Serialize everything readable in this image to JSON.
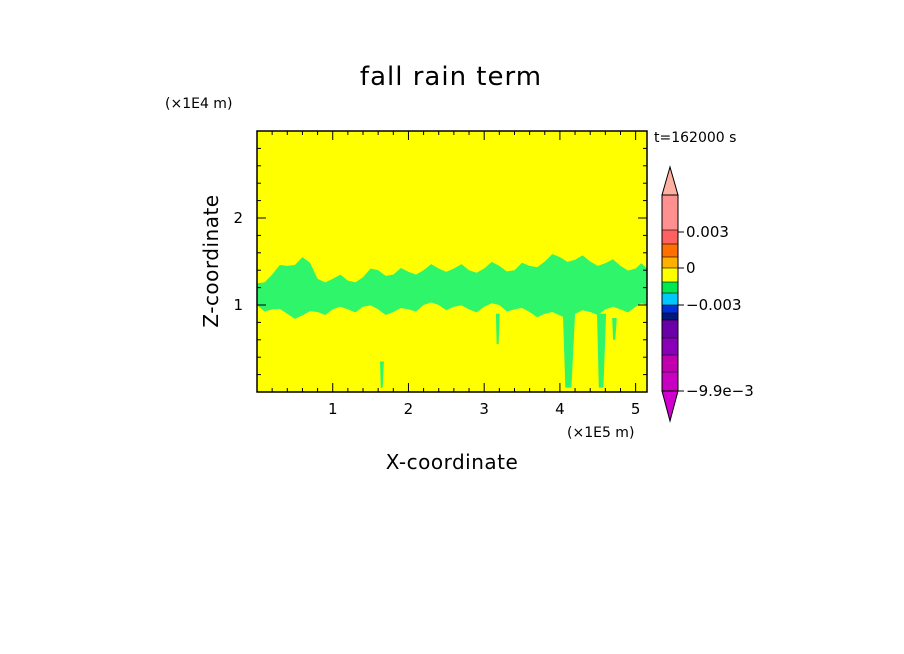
{
  "chart_data": {
    "type": "heatmap",
    "title": "fall rain term",
    "xlabel": "X-coordinate",
    "ylabel": "Z-coordinate",
    "x_unit": "(×1E5 m)",
    "y_unit": "(×1E4 m)",
    "time_label": "t=162000 s",
    "xlim": [
      0,
      5.15
    ],
    "ylim": [
      0,
      3.0
    ],
    "x_ticks": [
      1,
      2,
      3,
      4,
      5
    ],
    "y_ticks": [
      1,
      2
    ],
    "x_tick_labels": [
      "1",
      "2",
      "3",
      "4",
      "5"
    ],
    "y_tick_labels": [
      "1",
      "2"
    ],
    "background_color": "#ffff00",
    "field_color": "#2ef56a",
    "band": {
      "x": [
        0.0,
        0.2,
        0.4,
        0.6,
        0.8,
        1.0,
        1.2,
        1.4,
        1.6,
        1.8,
        2.0,
        2.2,
        2.4,
        2.6,
        2.8,
        3.0,
        3.2,
        3.4,
        3.6,
        3.8,
        4.0,
        4.2,
        4.4,
        4.6,
        4.8,
        5.0,
        5.15
      ],
      "z_top": [
        1.25,
        1.35,
        1.45,
        1.55,
        1.3,
        1.3,
        1.28,
        1.32,
        1.4,
        1.35,
        1.38,
        1.4,
        1.42,
        1.42,
        1.4,
        1.42,
        1.45,
        1.4,
        1.45,
        1.5,
        1.55,
        1.52,
        1.5,
        1.48,
        1.45,
        1.42,
        1.42
      ],
      "z_bottom": [
        1.0,
        0.95,
        0.9,
        0.88,
        0.92,
        0.95,
        0.95,
        0.98,
        0.95,
        0.92,
        0.95,
        1.0,
        1.0,
        0.98,
        0.95,
        0.98,
        1.0,
        0.95,
        0.92,
        0.9,
        0.88,
        0.9,
        0.92,
        0.95,
        0.95,
        0.98,
        1.0
      ]
    },
    "shafts": [
      {
        "x": 1.65,
        "z_top": 0.35,
        "z_bottom": 0.05,
        "width": 0.05
      },
      {
        "x": 3.18,
        "z_top": 0.9,
        "z_bottom": 0.55,
        "width": 0.05
      },
      {
        "x": 4.12,
        "z_top": 0.9,
        "z_bottom": 0.05,
        "width": 0.16
      },
      {
        "x": 4.55,
        "z_top": 0.9,
        "z_bottom": 0.05,
        "width": 0.12
      },
      {
        "x": 4.72,
        "z_top": 0.85,
        "z_bottom": 0.6,
        "width": 0.06
      }
    ],
    "colorbar": {
      "levels": [
        {
          "color": "#c800c0"
        },
        {
          "color": "#c000b0"
        },
        {
          "color": "#8a00b8"
        },
        {
          "color": "#6a00a8"
        },
        {
          "color": "#001a7a"
        },
        {
          "color": "#0030d8"
        },
        {
          "color": "#00c8ff"
        },
        {
          "color": "#00e850"
        },
        {
          "color": "#ffff00"
        },
        {
          "color": "#ffb000"
        },
        {
          "color": "#ff7000"
        },
        {
          "color": "#ff6060"
        },
        {
          "color": "#ff9090"
        }
      ],
      "labels": [
        {
          "text": "0.003",
          "at": 0.003
        },
        {
          "text": "0",
          "at": 0
        },
        {
          "text": "−0.003",
          "at": -0.003
        },
        {
          "text": "−9.9e−3",
          "at": -0.0099
        }
      ]
    }
  }
}
